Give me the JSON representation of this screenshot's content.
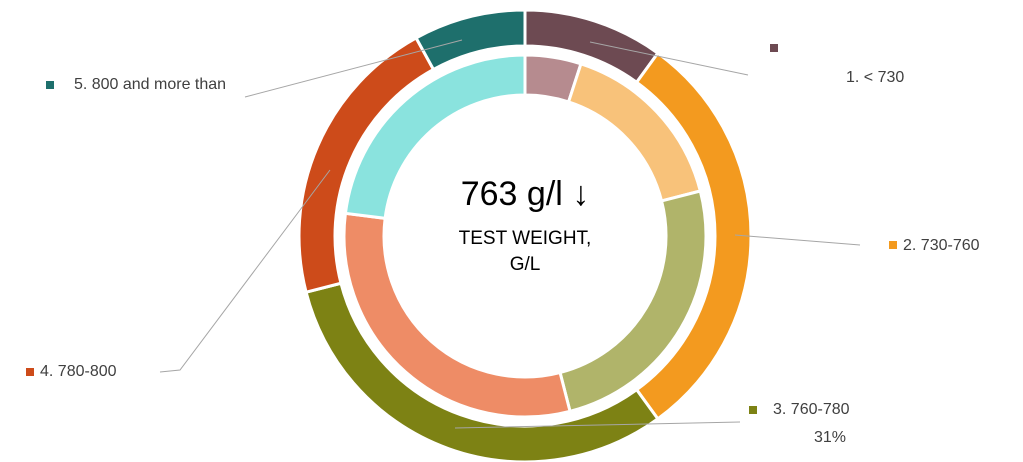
{
  "chart_data": {
    "type": "double-donut",
    "center_value": "763 g/l ↓",
    "center_label": "TEST WEIGHT, G/L",
    "categories": [
      "1.  < 730",
      "2. 730-760",
      "3. 760-780",
      "4. 780-800",
      "5. 800 and more than"
    ],
    "rings": [
      {
        "colors": [
          "#6d4a52",
          "#f39a1f",
          "#7d8214",
          "#cd4b1a",
          "#1e6f6c"
        ],
        "values": [
          10,
          30,
          31,
          21,
          8
        ],
        "value_labels": [
          null,
          null,
          "31%",
          null,
          null
        ]
      },
      {
        "colors": [
          "#b68b8f",
          "#f8c27a",
          "#b0b46a",
          "#ee8c66",
          "#8ae3de"
        ],
        "values": [
          5,
          16,
          25,
          31,
          23
        ]
      }
    ]
  }
}
